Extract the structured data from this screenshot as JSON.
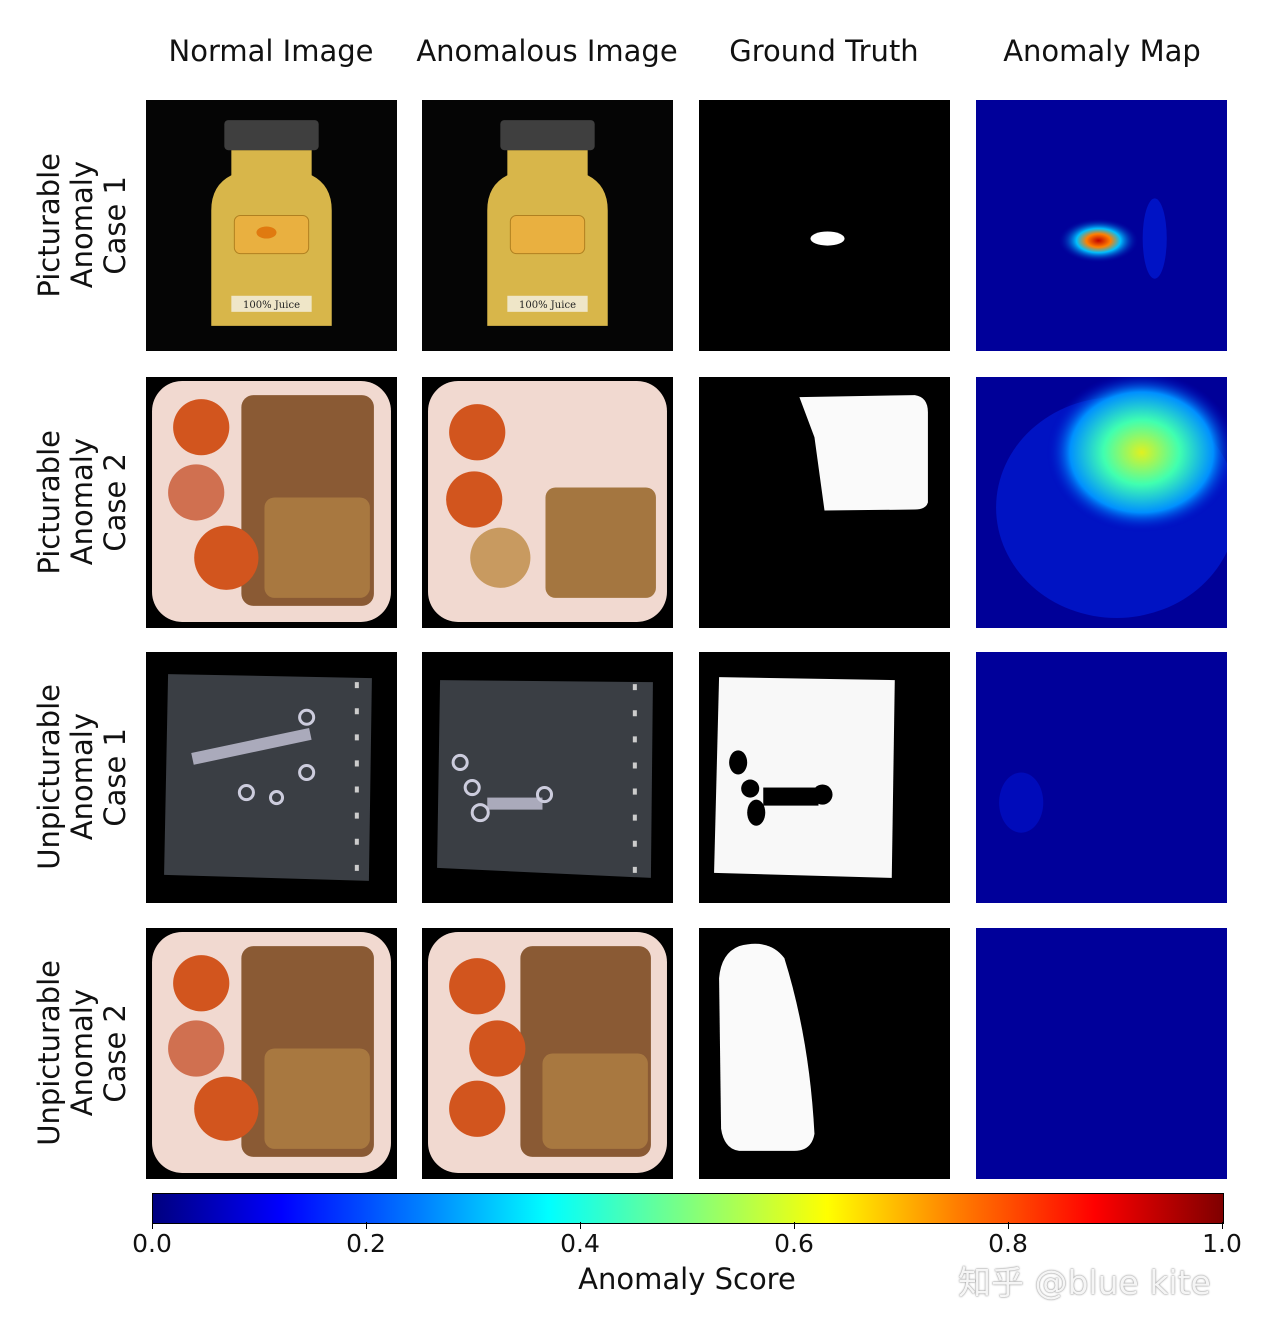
{
  "columns": [
    "Normal Image",
    "Anomalous Image",
    "Ground Truth",
    "Anomaly Map"
  ],
  "rows": [
    {
      "lines": [
        "Picturable",
        "Anomaly",
        "Case 1"
      ]
    },
    {
      "lines": [
        "Picturable",
        "Anomaly",
        "Case 2"
      ]
    },
    {
      "lines": [
        "Unpicturable",
        "Anomaly",
        "Case 1"
      ]
    },
    {
      "lines": [
        "Unpicturable",
        "Anomaly",
        "Case 2"
      ]
    }
  ],
  "jar_label": "100% Juice",
  "colorbar": {
    "label": "Anomaly Score",
    "ticks": [
      "0.0",
      "0.2",
      "0.4",
      "0.6",
      "0.8",
      "1.0"
    ],
    "range": [
      0,
      1
    ],
    "colormap": "jet"
  },
  "watermark": "知乎 @blue kite"
}
